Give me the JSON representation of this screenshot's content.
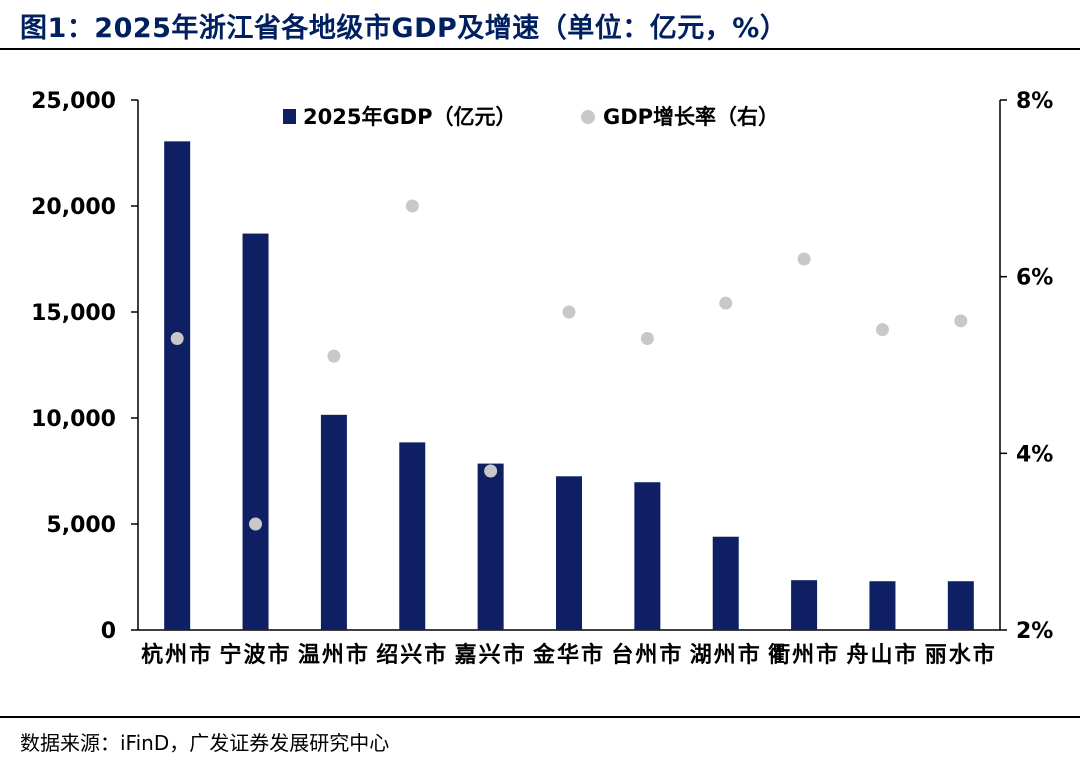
{
  "title": "图1：2025年浙江省各地级市GDP及增速（单位：亿元，%）",
  "source": "数据来源：iFinD，广发证券发展研究中心",
  "colors": {
    "bar": "#0f1f63",
    "dot": "#c8c8c8",
    "title": "#002060"
  },
  "chart_data": {
    "type": "bar+scatter",
    "categories": [
      "杭州市",
      "宁波市",
      "温州市",
      "绍兴市",
      "嘉兴市",
      "金华市",
      "台州市",
      "湖州市",
      "衢州市",
      "舟山市",
      "丽水市"
    ],
    "series": [
      {
        "name": "2025年GDP（亿元）",
        "type": "bar",
        "axis": "left",
        "values": [
          23050,
          18700,
          10150,
          8850,
          7850,
          7250,
          6970,
          4400,
          2350,
          2300,
          2300
        ]
      },
      {
        "name": "GDP增长率（右）",
        "type": "scatter",
        "axis": "right",
        "values": [
          5.3,
          3.2,
          5.1,
          6.8,
          3.8,
          5.6,
          5.3,
          5.7,
          6.2,
          5.4,
          5.5
        ]
      }
    ],
    "y_left": {
      "min": 0,
      "max": 25000,
      "ticks": [
        0,
        5000,
        10000,
        15000,
        20000,
        25000
      ],
      "tick_labels": [
        "0",
        "5,000",
        "10,000",
        "15,000",
        "20,000",
        "25,000"
      ]
    },
    "y_right": {
      "min": 2,
      "max": 8,
      "ticks": [
        2,
        4,
        6,
        8
      ],
      "tick_labels": [
        "2%",
        "4%",
        "6%",
        "8%"
      ]
    },
    "legend": "top-center",
    "grid": false
  }
}
